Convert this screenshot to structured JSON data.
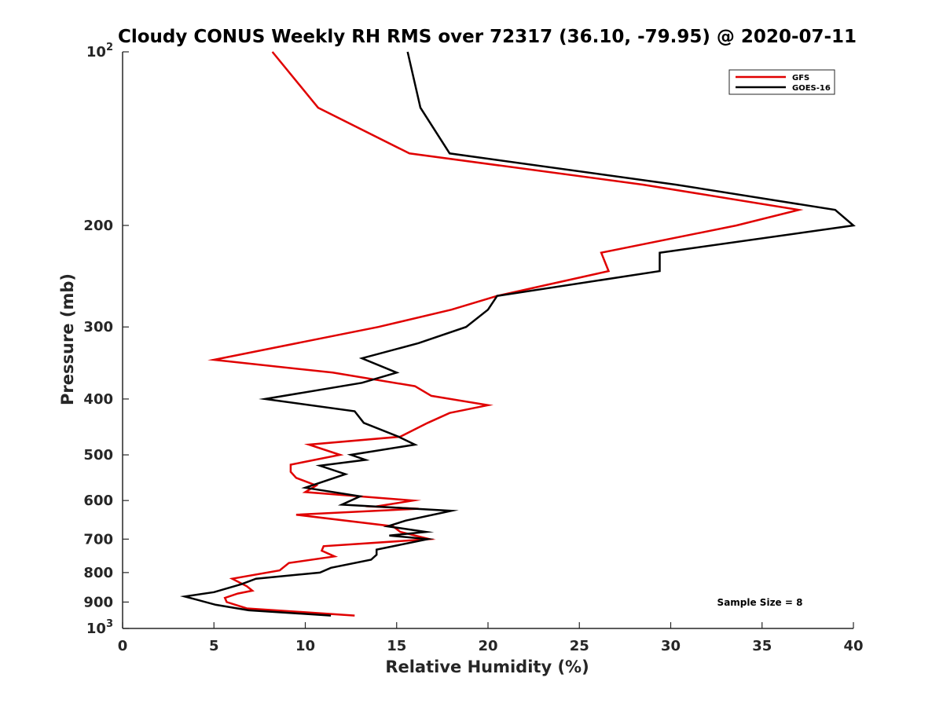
{
  "chart_data": {
    "type": "line",
    "title": "Cloudy CONUS Weekly RH RMS over 72317 (36.10, -79.95) @ 2020-07-11",
    "xlabel": "Relative Humidity (%)",
    "ylabel": "Pressure (mb)",
    "xlim": [
      0,
      40
    ],
    "ylim": [
      100,
      1000
    ],
    "y_scale": "log",
    "y_reversed": true,
    "x_ticks": [
      "0",
      "5",
      "10",
      "15",
      "20",
      "25",
      "30",
      "35",
      "40"
    ],
    "y_ticks": [
      {
        "value": 100,
        "base": "10",
        "exp": "2"
      },
      {
        "value": 200,
        "label": "200"
      },
      {
        "value": 300,
        "label": "300"
      },
      {
        "value": 400,
        "label": "400"
      },
      {
        "value": 500,
        "label": "500"
      },
      {
        "value": 600,
        "label": "600"
      },
      {
        "value": 700,
        "label": "700"
      },
      {
        "value": 800,
        "label": "800"
      },
      {
        "value": 900,
        "label": "900"
      },
      {
        "value": 1000,
        "base": "10",
        "exp": "3"
      }
    ],
    "grid": false,
    "legend_position": "top-right",
    "annotation": "Sample Size = 8",
    "series": [
      {
        "name": "GFS",
        "color": "#e00000",
        "points": [
          [
            8.2,
            100
          ],
          [
            10.7,
            125
          ],
          [
            15.7,
            150
          ],
          [
            28.5,
            170
          ],
          [
            37.0,
            188
          ],
          [
            33.6,
            200
          ],
          [
            26.2,
            223
          ],
          [
            26.6,
            240
          ],
          [
            20.5,
            265
          ],
          [
            18.0,
            280
          ],
          [
            14.0,
            300
          ],
          [
            5.0,
            342
          ],
          [
            11.5,
            360
          ],
          [
            16.0,
            380
          ],
          [
            16.9,
            395
          ],
          [
            20.0,
            410
          ],
          [
            17.9,
            423
          ],
          [
            16.7,
            440
          ],
          [
            15.2,
            465
          ],
          [
            10.2,
            480
          ],
          [
            11.9,
            500
          ],
          [
            9.2,
            520
          ],
          [
            9.2,
            535
          ],
          [
            9.5,
            548
          ],
          [
            10.6,
            565
          ],
          [
            10.0,
            580
          ],
          [
            15.9,
            600
          ],
          [
            13.8,
            615
          ],
          [
            16.2,
            620
          ],
          [
            9.5,
            635
          ],
          [
            14.8,
            665
          ],
          [
            15.2,
            680
          ],
          [
            16.8,
            700
          ],
          [
            11.0,
            720
          ],
          [
            10.9,
            733
          ],
          [
            11.6,
            750
          ],
          [
            9.1,
            770
          ],
          [
            8.6,
            793
          ],
          [
            6.0,
            820
          ],
          [
            6.8,
            845
          ],
          [
            7.1,
            860
          ],
          [
            6.3,
            870
          ],
          [
            5.6,
            885
          ],
          [
            5.7,
            900
          ],
          [
            6.8,
            923
          ],
          [
            12.7,
            950
          ]
        ]
      },
      {
        "name": "GOES-16",
        "color": "#000000",
        "points": [
          [
            15.6,
            100
          ],
          [
            16.3,
            125
          ],
          [
            17.9,
            150
          ],
          [
            30.3,
            170
          ],
          [
            39.0,
            188
          ],
          [
            40.0,
            200
          ],
          [
            29.4,
            223
          ],
          [
            29.4,
            240
          ],
          [
            20.5,
            265
          ],
          [
            20.0,
            280
          ],
          [
            18.8,
            300
          ],
          [
            16.2,
            320
          ],
          [
            13.1,
            340
          ],
          [
            15.0,
            360
          ],
          [
            13.1,
            375
          ],
          [
            7.8,
            400
          ],
          [
            12.7,
            420
          ],
          [
            13.2,
            440
          ],
          [
            15.1,
            465
          ],
          [
            16.0,
            480
          ],
          [
            12.5,
            500
          ],
          [
            13.3,
            510
          ],
          [
            10.8,
            522
          ],
          [
            12.2,
            540
          ],
          [
            10.0,
            570
          ],
          [
            13.0,
            590
          ],
          [
            12.0,
            610
          ],
          [
            18.0,
            625
          ],
          [
            15.5,
            650
          ],
          [
            14.5,
            665
          ],
          [
            16.6,
            680
          ],
          [
            14.6,
            690
          ],
          [
            16.7,
            700
          ],
          [
            13.9,
            730
          ],
          [
            13.9,
            745
          ],
          [
            13.6,
            760
          ],
          [
            11.4,
            785
          ],
          [
            10.8,
            800
          ],
          [
            7.3,
            820
          ],
          [
            6.5,
            838
          ],
          [
            5.0,
            865
          ],
          [
            3.4,
            880
          ],
          [
            5.1,
            910
          ],
          [
            6.9,
            930
          ],
          [
            11.4,
            950
          ]
        ]
      }
    ]
  }
}
